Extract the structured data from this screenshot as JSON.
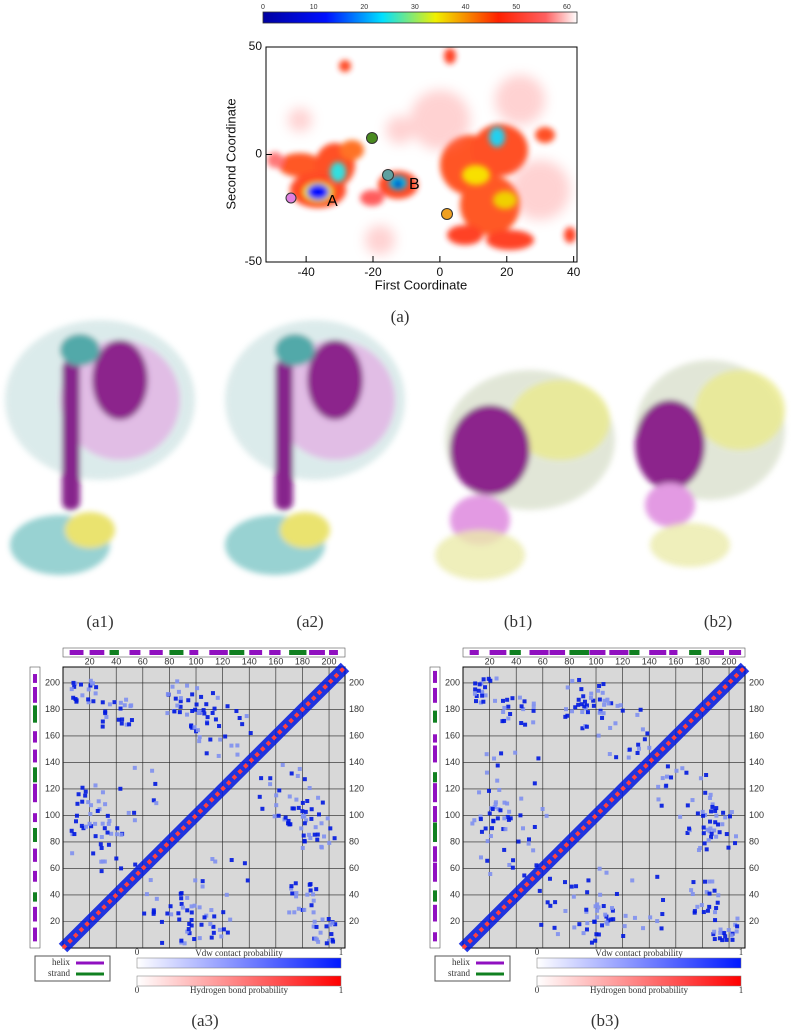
{
  "density_map": {
    "colorbar_ticks": [
      0,
      10,
      20,
      30,
      40,
      50,
      60
    ],
    "colorbar_lim": [
      0,
      62
    ],
    "xticks": [
      -40,
      -20,
      0,
      20,
      40
    ],
    "xlim": [
      -52,
      41
    ],
    "yticks": [
      50,
      0,
      -50
    ],
    "ylim": [
      -50,
      50
    ],
    "x_label": "First Coordinate",
    "y_label": "Second Coordinate",
    "point_labels": [
      "A",
      "B"
    ],
    "caption": "(a)"
  },
  "structures": {
    "captions": [
      "(a1)",
      "(a2)",
      "(b1)",
      "(b2)"
    ]
  },
  "contact_maps": [
    {
      "ticks": [
        20,
        40,
        60,
        80,
        100,
        120,
        140,
        160,
        180,
        200
      ],
      "lim": [
        0,
        212
      ],
      "legend": [
        "helix",
        "strand"
      ],
      "colorbar_labels": [
        "Vdw contact probability",
        "Hydrogen bond probability"
      ],
      "colorbar_ticks": [
        0,
        1
      ],
      "caption": "(a3)"
    },
    {
      "ticks": [
        20,
        40,
        60,
        80,
        100,
        120,
        140,
        160,
        180,
        200
      ],
      "lim": [
        0,
        212
      ],
      "legend": [
        "helix",
        "strand"
      ],
      "colorbar_labels": [
        "Vdw contact probability",
        "Hydrogen bond probability"
      ],
      "colorbar_ticks": [
        0,
        1
      ],
      "caption": "(b3)"
    }
  ]
}
